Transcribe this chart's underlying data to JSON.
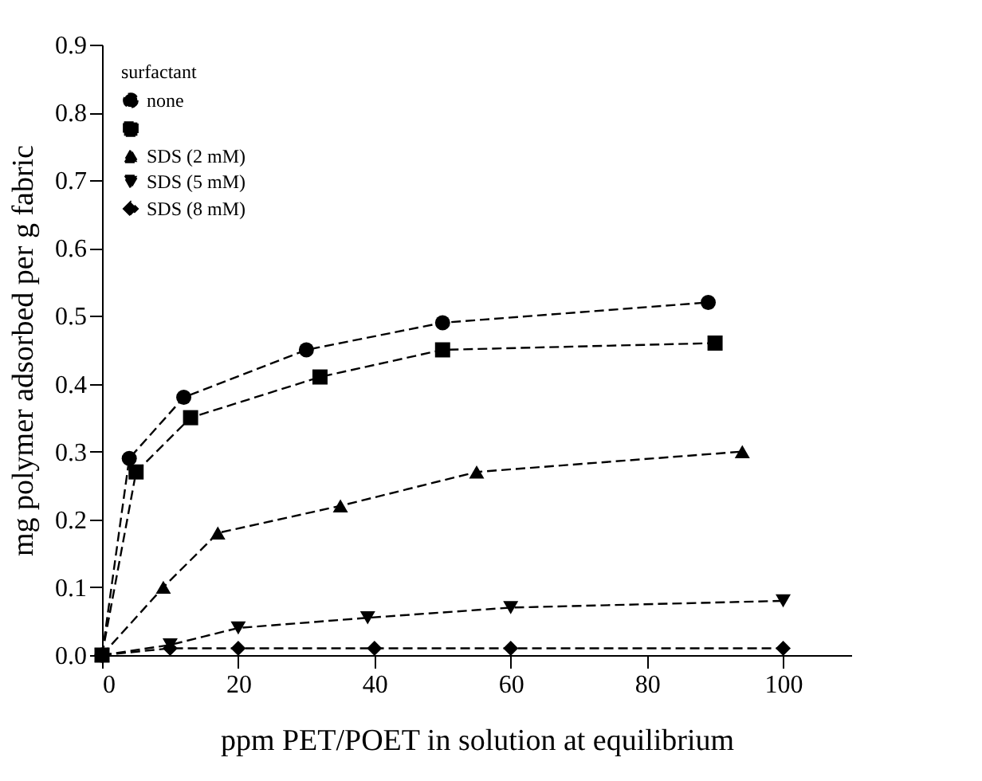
{
  "chart_data": {
    "type": "line",
    "xlabel": "ppm PET/POET in solution at equilibrium",
    "ylabel": "mg polymer adsorbed per g fabric",
    "legend_title": "surfactant",
    "legend": "top left",
    "line_style": "dashed",
    "grid": false,
    "xlim": [
      0,
      110
    ],
    "xticks": [
      0,
      20,
      40,
      60,
      80,
      100
    ],
    "ylim": [
      0,
      0.9
    ],
    "yticks": [
      {
        "value": 0,
        "label": "0.0"
      },
      {
        "value": 0.1,
        "label": "0.1"
      },
      {
        "value": 0.2,
        "label": "0.2"
      },
      {
        "value": 0.3,
        "label": "0.3"
      },
      {
        "value": 0.4,
        "label": "0.4"
      },
      {
        "value": 0.5,
        "label": "0.5"
      },
      {
        "value": 0.6,
        "label": "0.6"
      },
      {
        "value": 0.7,
        "label": "0.7"
      },
      {
        "value": 0.8,
        "label": "0.8"
      },
      {
        "value": 0.9,
        "label": "0.9"
      }
    ],
    "series": [
      {
        "name": "none",
        "color": "#000000",
        "marker": "circle",
        "x": [
          0,
          4,
          12,
          30,
          50,
          89
        ],
        "values": [
          0,
          0.29,
          0.38,
          0.45,
          0.49,
          0.52
        ]
      },
      {
        "color": "#000000",
        "marker": "square",
        "x": [
          0,
          5,
          13,
          32,
          50,
          90
        ],
        "values": [
          0,
          0.27,
          0.35,
          0.41,
          0.45,
          0.46
        ]
      },
      {
        "name": "SDS (2 mM)",
        "color": "#000000",
        "marker": "triangle",
        "x": [
          0,
          9,
          17,
          35,
          55,
          94
        ],
        "values": [
          0,
          0.1,
          0.18,
          0.22,
          0.27,
          0.3
        ]
      },
      {
        "name": "SDS (5 mM)",
        "color": "#000000",
        "marker": "triangle-down",
        "x": [
          0,
          10,
          20,
          39,
          60,
          100
        ],
        "values": [
          0,
          0.015,
          0.04,
          0.055,
          0.07,
          0.08
        ]
      },
      {
        "name": "SDS (8 mM)",
        "color": "#000000",
        "marker": "diamond",
        "x": [
          0,
          10,
          20,
          40,
          60,
          100
        ],
        "values": [
          0,
          0.01,
          0.01,
          0.01,
          0.01,
          0.01
        ]
      }
    ]
  }
}
